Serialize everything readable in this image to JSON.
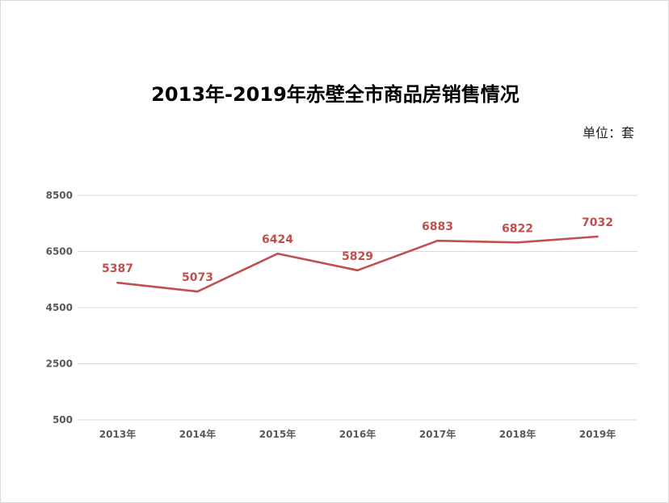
{
  "title": "2013年-2019年赤壁全市商品房销售情况",
  "unit": "单位：套",
  "colors": {
    "line": "#c0504d",
    "grid": "#d9d9d9",
    "tick": "#595959"
  },
  "chart_data": {
    "type": "line",
    "title": "2013年-2019年赤壁全市商品房销售情况",
    "unit": "单位：套",
    "categories": [
      "2013年",
      "2014年",
      "2015年",
      "2016年",
      "2017年",
      "2018年",
      "2019年"
    ],
    "series": [
      {
        "values": [
          5387,
          5073,
          6424,
          5829,
          6883,
          6822,
          7032
        ]
      }
    ],
    "yticks": [
      500,
      2500,
      4500,
      6500,
      8500
    ],
    "ylim": [
      500,
      8500
    ],
    "grid": true,
    "data_labels": true
  }
}
